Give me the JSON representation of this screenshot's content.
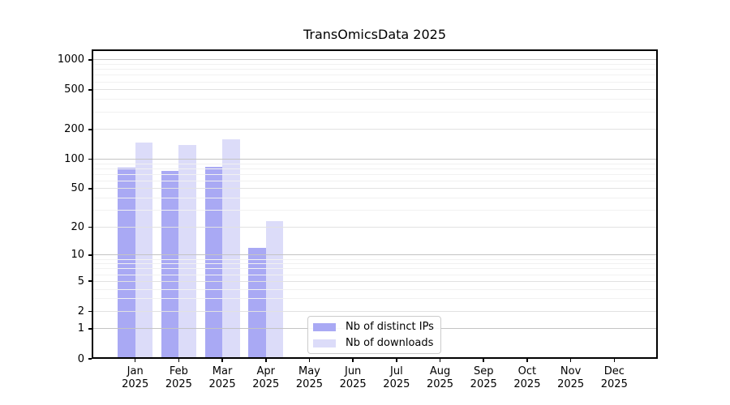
{
  "title": "TransOmicsData 2025",
  "colors": {
    "ips": "#a9a9f4",
    "downloads": "#dcdcf9",
    "grid_major": "#c4c4c4",
    "grid_mid": "#e2e2e2",
    "grid_minor": "#f1f1f1",
    "axis": "#000000"
  },
  "legend": {
    "items": [
      {
        "label": "Nb of distinct IPs"
      },
      {
        "label": "Nb of downloads"
      }
    ]
  },
  "y_axis": {
    "ticks": [
      0,
      1,
      2,
      5,
      10,
      20,
      50,
      100,
      200,
      500,
      1000
    ],
    "gridlines": {
      "major": [
        1,
        10,
        100,
        1000
      ],
      "mid": [
        2,
        5,
        20,
        50,
        200,
        500
      ],
      "minor": [
        3,
        4,
        6,
        7,
        8,
        9,
        30,
        40,
        60,
        70,
        80,
        90,
        300,
        400,
        600,
        700,
        800,
        900
      ]
    }
  },
  "x_axis": {
    "months": [
      "Jan",
      "Feb",
      "Mar",
      "Apr",
      "May",
      "Jun",
      "Jul",
      "Aug",
      "Sep",
      "Oct",
      "Nov",
      "Dec"
    ],
    "year": "2025"
  },
  "chart_data": {
    "type": "bar",
    "title": "TransOmicsData 2025",
    "scale": "log10(1+y)",
    "categories": [
      "Jan 2025",
      "Feb 2025",
      "Mar 2025",
      "Apr 2025",
      "May 2025",
      "Jun 2025",
      "Jul 2025",
      "Aug 2025",
      "Sep 2025",
      "Oct 2025",
      "Nov 2025",
      "Dec 2025"
    ],
    "series": [
      {
        "name": "Nb of distinct IPs",
        "color_key": "ips",
        "values": [
          82,
          76,
          84,
          12,
          0,
          0,
          0,
          0,
          0,
          0,
          0,
          0
        ]
      },
      {
        "name": "Nb of downloads",
        "color_key": "downloads",
        "values": [
          147,
          140,
          160,
          23,
          0,
          0,
          0,
          0,
          0,
          0,
          0,
          0
        ]
      }
    ],
    "xlabel": "",
    "ylabel": "",
    "ylim": [
      0,
      1280
    ],
    "ytick_labels": [
      "0",
      "1",
      "2",
      "5",
      "10",
      "20",
      "50",
      "100",
      "200",
      "500",
      "1000"
    ],
    "grid": true,
    "legend_position": "lower-center-inside"
  }
}
